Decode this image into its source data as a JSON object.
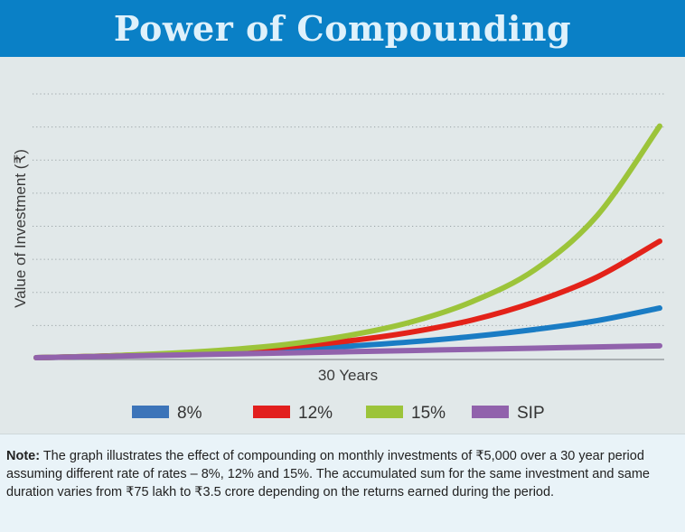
{
  "header": {
    "title": "Power of Compounding"
  },
  "chart_data": {
    "type": "line",
    "title": "Power of Compounding",
    "xlabel": "30 Years",
    "ylabel": "Value of Investment (₹)",
    "y_unit": "₹ lakh",
    "ylim": [
      0,
      400
    ],
    "xlim": [
      0,
      30
    ],
    "grid": true,
    "grid_style": "dotted horizontal",
    "gridline_values": [
      50,
      100,
      150,
      200,
      250,
      300,
      350,
      400
    ],
    "legend_position": "bottom",
    "x": [
      0,
      3,
      6,
      9,
      12,
      15,
      18,
      21,
      24,
      27,
      30
    ],
    "series": [
      {
        "name": "8%",
        "color": "#1a7cc4",
        "values": [
          0,
          2.0,
          4.8,
          8.0,
          12.1,
          17.3,
          23.8,
          32.1,
          42.7,
          56.0,
          75.0
        ]
      },
      {
        "name": "12%",
        "color": "#e32219",
        "values": [
          0,
          2.2,
          5.3,
          9.7,
          16.2,
          25.2,
          38.3,
          57.0,
          84.4,
          122.0,
          176.0
        ]
      },
      {
        "name": "15%",
        "color": "#9cc43a",
        "values": [
          0,
          2.3,
          5.9,
          11.4,
          19.9,
          33.4,
          53.6,
          85.0,
          133.0,
          215.0,
          350.0
        ]
      },
      {
        "name": "SIP",
        "color": "#9162ac",
        "values": [
          0,
          1.8,
          3.6,
          5.4,
          7.2,
          9.0,
          10.8,
          12.6,
          14.4,
          16.2,
          18.0
        ]
      }
    ]
  },
  "legend": [
    {
      "label": "8%",
      "color": "#3c74b9"
    },
    {
      "label": "12%",
      "color": "#e21f1e"
    },
    {
      "label": "15%",
      "color": "#9cc43a"
    },
    {
      "label": "SIP",
      "color": "#9162ac"
    }
  ],
  "note": {
    "label": "Note:",
    "text": " The graph illustrates the effect of compounding on monthly investments of ₹5,000 over a 30 year period assuming different rate of rates – 8%, 12% and 15%. The accumulated sum for the same investment and same duration varies from ₹75 lakh to ₹3.5 crore depending on the returns earned during the period."
  }
}
